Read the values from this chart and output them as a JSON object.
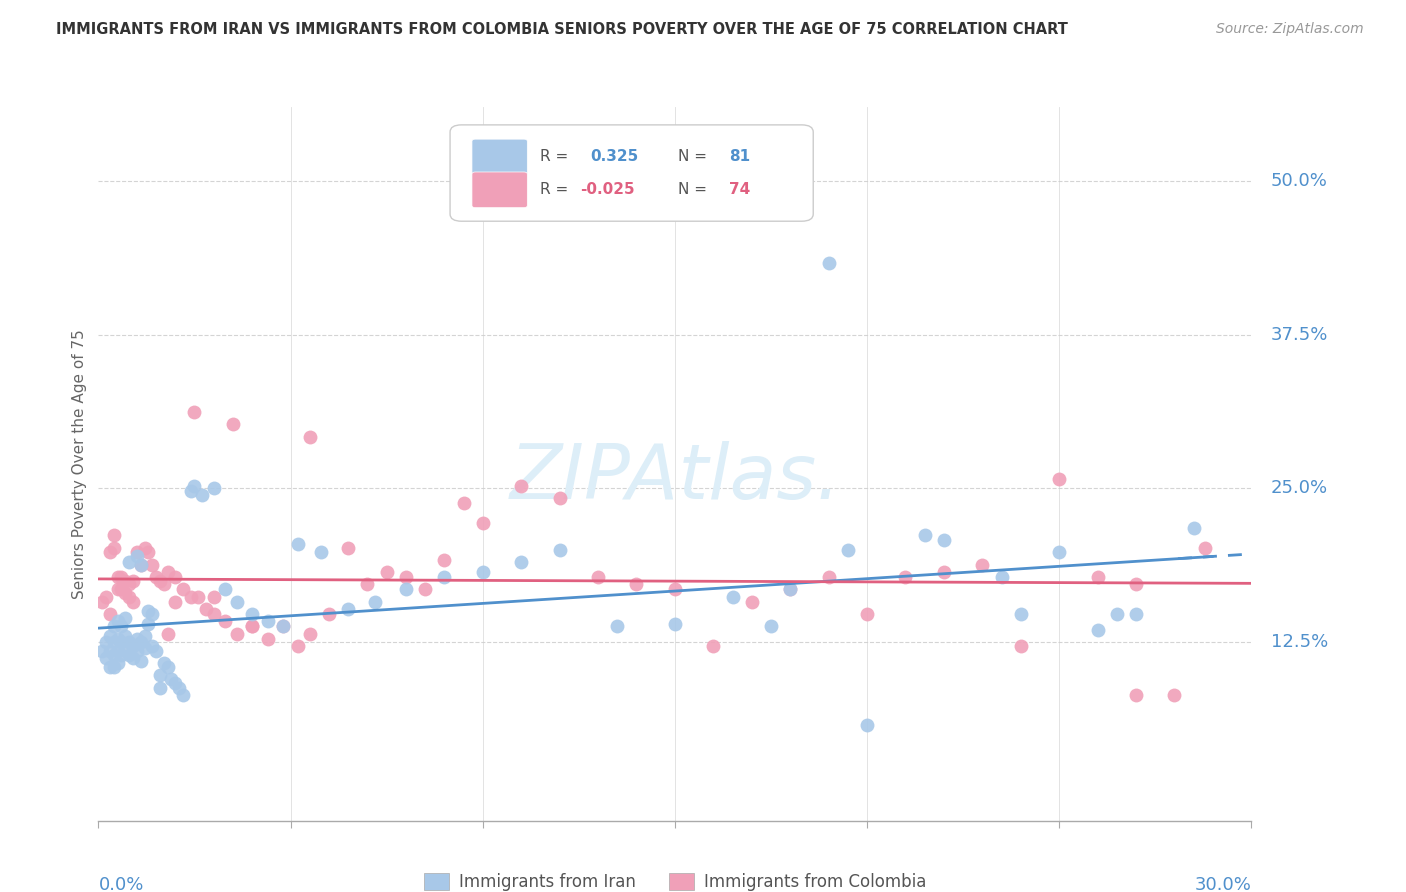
{
  "title": "IMMIGRANTS FROM IRAN VS IMMIGRANTS FROM COLOMBIA SENIORS POVERTY OVER THE AGE OF 75 CORRELATION CHART",
  "source": "Source: ZipAtlas.com",
  "ylabel": "Seniors Poverty Over the Age of 75",
  "ytick_labels": [
    "50.0%",
    "37.5%",
    "25.0%",
    "12.5%"
  ],
  "ytick_values": [
    0.5,
    0.375,
    0.25,
    0.125
  ],
  "xlim": [
    0.0,
    0.3
  ],
  "ylim": [
    -0.02,
    0.56
  ],
  "iran_R": 0.325,
  "iran_N": 81,
  "colombia_R": -0.025,
  "colombia_N": 74,
  "iran_color": "#a8c8e8",
  "colombia_color": "#f0a0b8",
  "iran_line_color": "#5090cc",
  "colombia_line_color": "#e06080",
  "grid_color": "#d0d0d0",
  "axis_color": "#5090cc",
  "title_color": "#333333",
  "watermark_color": "#ddeeff",
  "background_color": "#ffffff",
  "iran_scatter_x": [
    0.001,
    0.002,
    0.002,
    0.003,
    0.003,
    0.003,
    0.004,
    0.004,
    0.004,
    0.004,
    0.005,
    0.005,
    0.005,
    0.005,
    0.006,
    0.006,
    0.006,
    0.007,
    0.007,
    0.007,
    0.008,
    0.008,
    0.008,
    0.009,
    0.009,
    0.01,
    0.01,
    0.01,
    0.011,
    0.011,
    0.011,
    0.012,
    0.012,
    0.013,
    0.013,
    0.014,
    0.014,
    0.015,
    0.016,
    0.016,
    0.017,
    0.018,
    0.019,
    0.02,
    0.021,
    0.022,
    0.024,
    0.025,
    0.027,
    0.03,
    0.033,
    0.036,
    0.04,
    0.044,
    0.048,
    0.052,
    0.058,
    0.065,
    0.072,
    0.08,
    0.09,
    0.1,
    0.11,
    0.12,
    0.135,
    0.15,
    0.165,
    0.18,
    0.195,
    0.215,
    0.235,
    0.25,
    0.265,
    0.27,
    0.175,
    0.19,
    0.2,
    0.22,
    0.24,
    0.26,
    0.285
  ],
  "iran_scatter_y": [
    0.118,
    0.112,
    0.125,
    0.105,
    0.118,
    0.13,
    0.105,
    0.115,
    0.125,
    0.138,
    0.108,
    0.118,
    0.128,
    0.142,
    0.125,
    0.115,
    0.138,
    0.12,
    0.13,
    0.145,
    0.115,
    0.125,
    0.19,
    0.112,
    0.122,
    0.118,
    0.128,
    0.195,
    0.11,
    0.125,
    0.188,
    0.13,
    0.12,
    0.14,
    0.15,
    0.148,
    0.122,
    0.118,
    0.098,
    0.088,
    0.108,
    0.105,
    0.095,
    0.092,
    0.088,
    0.082,
    0.248,
    0.252,
    0.245,
    0.25,
    0.168,
    0.158,
    0.148,
    0.142,
    0.138,
    0.205,
    0.198,
    0.152,
    0.158,
    0.168,
    0.178,
    0.182,
    0.19,
    0.2,
    0.138,
    0.14,
    0.162,
    0.168,
    0.2,
    0.212,
    0.178,
    0.198,
    0.148,
    0.148,
    0.138,
    0.433,
    0.058,
    0.208,
    0.148,
    0.135,
    0.218
  ],
  "colombia_scatter_x": [
    0.001,
    0.002,
    0.003,
    0.003,
    0.004,
    0.004,
    0.005,
    0.005,
    0.006,
    0.006,
    0.007,
    0.007,
    0.008,
    0.008,
    0.009,
    0.009,
    0.01,
    0.011,
    0.012,
    0.013,
    0.014,
    0.015,
    0.016,
    0.017,
    0.018,
    0.02,
    0.022,
    0.024,
    0.026,
    0.028,
    0.03,
    0.033,
    0.036,
    0.04,
    0.044,
    0.048,
    0.052,
    0.055,
    0.06,
    0.065,
    0.07,
    0.075,
    0.08,
    0.085,
    0.09,
    0.095,
    0.1,
    0.11,
    0.12,
    0.13,
    0.14,
    0.15,
    0.16,
    0.17,
    0.18,
    0.19,
    0.2,
    0.21,
    0.22,
    0.23,
    0.24,
    0.25,
    0.26,
    0.27,
    0.28,
    0.288,
    0.27,
    0.055,
    0.025,
    0.035,
    0.02,
    0.04,
    0.018,
    0.03
  ],
  "colombia_scatter_y": [
    0.158,
    0.162,
    0.148,
    0.198,
    0.212,
    0.202,
    0.178,
    0.168,
    0.178,
    0.168,
    0.165,
    0.175,
    0.162,
    0.172,
    0.158,
    0.175,
    0.198,
    0.188,
    0.202,
    0.198,
    0.188,
    0.178,
    0.175,
    0.172,
    0.182,
    0.178,
    0.168,
    0.162,
    0.162,
    0.152,
    0.148,
    0.142,
    0.132,
    0.138,
    0.128,
    0.138,
    0.122,
    0.132,
    0.148,
    0.202,
    0.172,
    0.182,
    0.178,
    0.168,
    0.192,
    0.238,
    0.222,
    0.252,
    0.242,
    0.178,
    0.172,
    0.168,
    0.122,
    0.158,
    0.168,
    0.178,
    0.148,
    0.178,
    0.182,
    0.188,
    0.122,
    0.258,
    0.178,
    0.172,
    0.082,
    0.202,
    0.082,
    0.292,
    0.312,
    0.302,
    0.158,
    0.138,
    0.132,
    0.162
  ]
}
